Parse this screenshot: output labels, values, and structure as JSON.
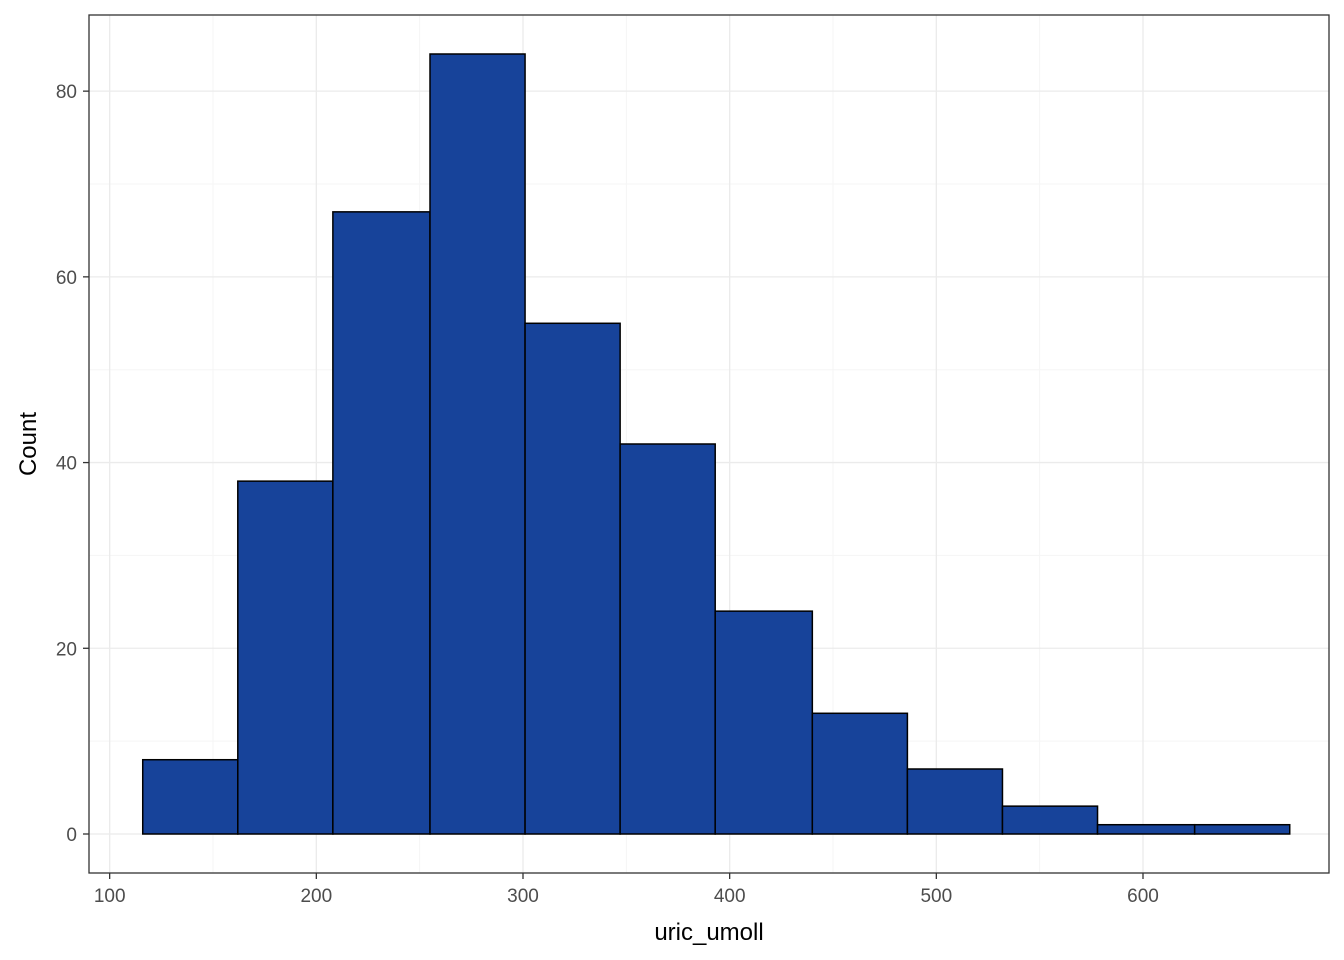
{
  "chart_data": {
    "type": "bar",
    "subtype": "histogram",
    "title": "",
    "xlabel": "uric_umoll",
    "ylabel": "Count",
    "xlim": [
      90,
      690
    ],
    "ylim": [
      -4.2,
      88.2
    ],
    "x_ticks": [
      100,
      200,
      300,
      400,
      500,
      600
    ],
    "y_ticks": [
      0,
      20,
      40,
      60,
      80
    ],
    "grid": true,
    "bins": [
      {
        "x0": 116,
        "x1": 162,
        "count": 8
      },
      {
        "x0": 162,
        "x1": 208,
        "count": 38
      },
      {
        "x0": 208,
        "x1": 255,
        "count": 67
      },
      {
        "x0": 255,
        "x1": 301,
        "count": 84
      },
      {
        "x0": 301,
        "x1": 347,
        "count": 55
      },
      {
        "x0": 347,
        "x1": 393,
        "count": 42
      },
      {
        "x0": 393,
        "x1": 440,
        "count": 24
      },
      {
        "x0": 440,
        "x1": 486,
        "count": 13
      },
      {
        "x0": 486,
        "x1": 532,
        "count": 7
      },
      {
        "x0": 532,
        "x1": 578,
        "count": 3
      },
      {
        "x0": 578,
        "x1": 625,
        "count": 1
      },
      {
        "x0": 625,
        "x1": 671,
        "count": 1
      }
    ],
    "colors": {
      "bar_fill": "#17439a",
      "bar_stroke": "#000000",
      "grid_major": "#ebebeb",
      "grid_minor": "#f5f5f5",
      "panel_border": "#333333"
    }
  }
}
